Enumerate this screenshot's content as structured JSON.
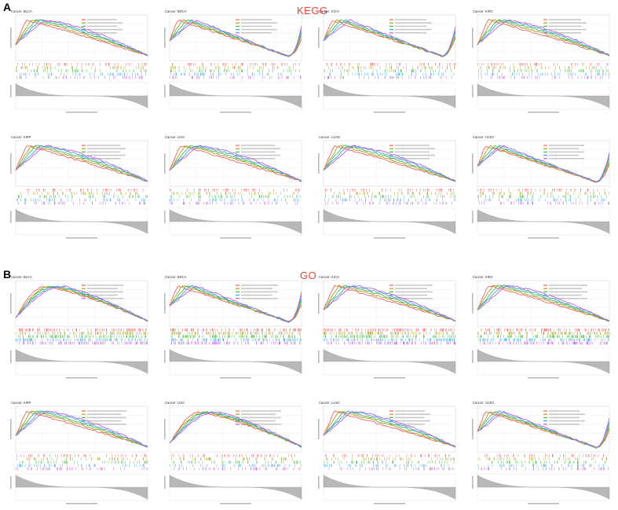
{
  "panels": {
    "a_label": "A",
    "a_title": "KEGG",
    "b_label": "B",
    "b_title": "GO"
  },
  "colors": {
    "red": "#f0626a",
    "olive": "#a8a020",
    "green": "#4cb848",
    "blue": "#3aa8e0",
    "purple": "#c060d8",
    "gray_fill": "#b8b8b8",
    "title_accent": "#e8423c"
  },
  "chart_data": [
    {
      "type": "line",
      "section": "KEGG",
      "title": "Cancer: BLCA",
      "shape": "early_peak",
      "bottom_rank": true
    },
    {
      "type": "line",
      "section": "KEGG",
      "title": "Cancer: BRCA",
      "shape": "early_peak_late_rise",
      "bottom_rank": true
    },
    {
      "type": "line",
      "section": "KEGG",
      "title": "Cancer: KICH",
      "shape": "early_peak_late_rise",
      "bottom_rank": true
    },
    {
      "type": "line",
      "section": "KEGG",
      "title": "Cancer: KIRC",
      "shape": "early_peak",
      "bottom_rank": true
    },
    {
      "type": "line",
      "section": "KEGG",
      "title": "Cancer: KIRP",
      "shape": "early_peak",
      "bottom_rank": true
    },
    {
      "type": "line",
      "section": "KEGG",
      "title": "Cancer: LIHC",
      "shape": "early_peak",
      "bottom_rank": true
    },
    {
      "type": "line",
      "section": "KEGG",
      "title": "Cancer: LUAD",
      "shape": "early_peak",
      "bottom_rank": true
    },
    {
      "type": "line",
      "section": "KEGG",
      "title": "Cancer: UCEC",
      "shape": "early_peak_late_rise",
      "bottom_rank": true
    },
    {
      "type": "line",
      "section": "GO",
      "title": "Cancer: BLCA",
      "shape": "mid_peak",
      "bottom_rank": true
    },
    {
      "type": "line",
      "section": "GO",
      "title": "Cancer: BRCA",
      "shape": "early_peak_late_rise",
      "bottom_rank": true
    },
    {
      "type": "line",
      "section": "GO",
      "title": "Cancer: KICH",
      "shape": "early_peak",
      "bottom_rank": true
    },
    {
      "type": "line",
      "section": "GO",
      "title": "Cancer: KIRC",
      "shape": "early_peak",
      "bottom_rank": true
    },
    {
      "type": "line",
      "section": "GO",
      "title": "Cancer: KIRP",
      "shape": "early_peak",
      "bottom_rank": true
    },
    {
      "type": "line",
      "section": "GO",
      "title": "Cancer: LIHC",
      "shape": "mid_peak",
      "bottom_rank": true
    },
    {
      "type": "line",
      "section": "GO",
      "title": "Cancer: LUSC",
      "shape": "early_peak",
      "bottom_rank": true
    },
    {
      "type": "line",
      "section": "GO",
      "title": "Cancer: UCEC",
      "shape": "early_peak_late_rise",
      "bottom_rank": true
    }
  ]
}
